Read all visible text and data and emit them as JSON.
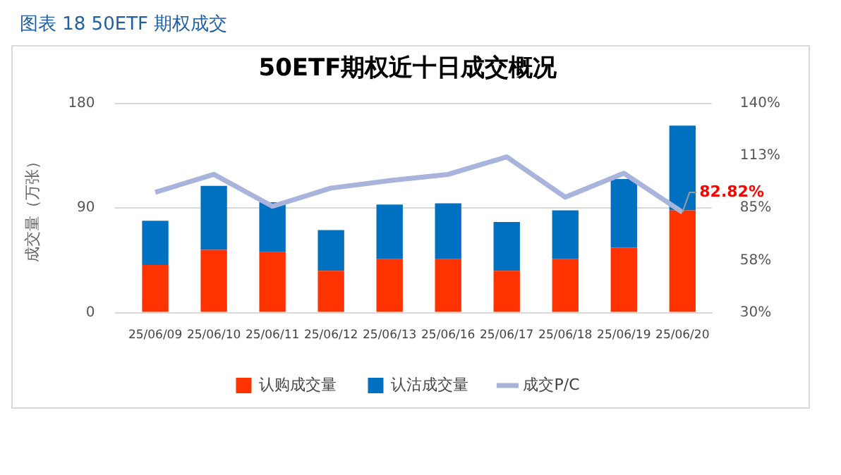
{
  "chart_data": {
    "type": "bar",
    "title": "50ETF期权近十日成交概况",
    "subtitle": "图表 18 50ETF 期权成交",
    "ylabel": "成交量（万张）",
    "categories": [
      "25/06/09",
      "25/06/10",
      "25/06/11",
      "25/06/12",
      "25/06/13",
      "25/06/16",
      "25/06/17",
      "25/06/18",
      "25/06/19",
      "25/06/20"
    ],
    "stacked": true,
    "series": [
      {
        "name": "认购成交量",
        "color": "#ff3300",
        "values": [
          41,
          54,
          52,
          36,
          46,
          46,
          36,
          46,
          56,
          88
        ]
      },
      {
        "name": "认沽成交量",
        "color": "#0070c0",
        "values": [
          38,
          55,
          43,
          35,
          47,
          48,
          42,
          42,
          59,
          73
        ]
      },
      {
        "name": "成交P/C",
        "type": "line",
        "axis": "y2",
        "color": "#a9b4dc",
        "values": [
          93.3,
          102.7,
          85.9,
          95.5,
          99.4,
          102.7,
          111.9,
          90.7,
          103.3,
          82.82
        ],
        "value_labels": [
          null,
          null,
          null,
          null,
          null,
          null,
          null,
          null,
          null,
          "82.82%"
        ]
      }
    ],
    "ylim": [
      0,
      180
    ],
    "yticks": [
      0,
      90,
      180
    ],
    "y2lim": [
      30,
      140
    ],
    "y2ticks": [
      {
        "value": 30,
        "label": "30%"
      },
      {
        "value": 57.5,
        "label": "58%"
      },
      {
        "value": 85,
        "label": "85%"
      },
      {
        "value": 112.5,
        "label": "113%"
      },
      {
        "value": 140,
        "label": "140%"
      }
    ],
    "grid": "y",
    "legend": "bottom",
    "marker": "none"
  }
}
